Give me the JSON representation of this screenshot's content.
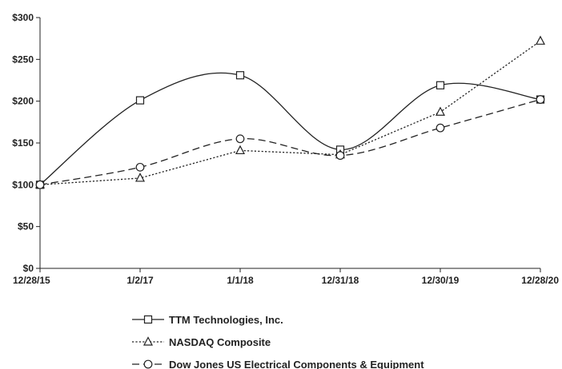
{
  "chart_data": {
    "type": "line",
    "title": "",
    "xlabel": "",
    "ylabel": "",
    "categories": [
      "12/28/15",
      "1/2/17",
      "1/1/18",
      "12/31/18",
      "12/30/19",
      "12/28/20"
    ],
    "ylim": [
      0,
      300
    ],
    "yticks": [
      0,
      50,
      100,
      150,
      200,
      250,
      300
    ],
    "ytick_labels": [
      "$0",
      "$50",
      "$100",
      "$150",
      "$200",
      "$250",
      "$300"
    ],
    "grid": false,
    "legend_position": "bottom",
    "series": [
      {
        "name": "TTM Technologies, Inc.",
        "values": [
          100,
          201,
          231,
          142,
          219,
          202
        ],
        "marker": "square",
        "line": "solid",
        "smooth": true
      },
      {
        "name": "NASDAQ Composite",
        "values": [
          100,
          108,
          141,
          136,
          187,
          272
        ],
        "marker": "triangle",
        "line": "dotted",
        "smooth": false
      },
      {
        "name": "Dow Jones US Electrical Components & Equipment",
        "values": [
          100,
          121,
          155,
          135,
          168,
          202
        ],
        "marker": "circle",
        "line": "dashed",
        "smooth": true
      }
    ],
    "colors": {
      "axis": "#222222",
      "line": "#222222",
      "background": "#ffffff"
    }
  }
}
